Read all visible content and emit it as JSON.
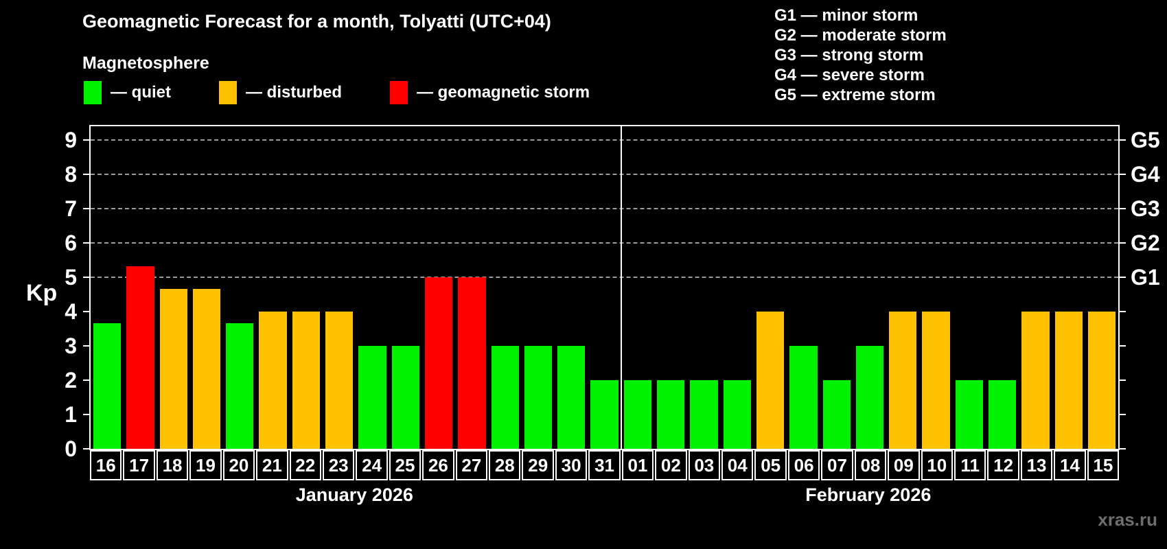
{
  "header": {
    "title": "Geomagnetic Forecast for a month, Tolyatti (UTC+04)",
    "subtitle": "Magnetosphere",
    "legend": [
      {
        "level": "quiet",
        "label": "— quiet"
      },
      {
        "level": "disturbed",
        "label": "— disturbed"
      },
      {
        "level": "storm",
        "label": "— geomagnetic storm"
      }
    ],
    "g_scale_legend": [
      "G1 — minor storm",
      "G2 — moderate storm",
      "G3 — strong storm",
      "G4 — severe storm",
      "G5 — extreme storm"
    ]
  },
  "chart_data": {
    "type": "bar",
    "title": "Geomagnetic Forecast for a month, Tolyatti (UTC+04)",
    "xlabel": "",
    "ylabel": "Kp",
    "ylim": [
      0,
      9.4
    ],
    "grid": "dashed horizontal at Kp 5-9 only",
    "y_ticks": [
      0,
      1,
      2,
      3,
      4,
      5,
      6,
      7,
      8,
      9
    ],
    "gridline_kp": [
      5,
      6,
      7,
      8,
      9
    ],
    "right_axis_labels": [
      {
        "kp": 5,
        "label": "G1"
      },
      {
        "kp": 6,
        "label": "G2"
      },
      {
        "kp": 7,
        "label": "G3"
      },
      {
        "kp": 8,
        "label": "G4"
      },
      {
        "kp": 9,
        "label": "G5"
      }
    ],
    "levels": {
      "quiet": "#00f200",
      "disturbed": "#ffc200",
      "storm": "#ff0000"
    },
    "months": [
      {
        "key": "jan",
        "label": "January 2026",
        "days": [
          {
            "day": "16",
            "kp": 3.67,
            "level": "quiet"
          },
          {
            "day": "17",
            "kp": 5.33,
            "level": "storm"
          },
          {
            "day": "18",
            "kp": 4.67,
            "level": "disturbed"
          },
          {
            "day": "19",
            "kp": 4.67,
            "level": "disturbed"
          },
          {
            "day": "20",
            "kp": 3.67,
            "level": "quiet"
          },
          {
            "day": "21",
            "kp": 4,
            "level": "disturbed"
          },
          {
            "day": "22",
            "kp": 4,
            "level": "disturbed"
          },
          {
            "day": "23",
            "kp": 4,
            "level": "disturbed"
          },
          {
            "day": "24",
            "kp": 3,
            "level": "quiet"
          },
          {
            "day": "25",
            "kp": 3,
            "level": "quiet"
          },
          {
            "day": "26",
            "kp": 5,
            "level": "storm"
          },
          {
            "day": "27",
            "kp": 5,
            "level": "storm"
          },
          {
            "day": "28",
            "kp": 3,
            "level": "quiet"
          },
          {
            "day": "29",
            "kp": 3,
            "level": "quiet"
          },
          {
            "day": "30",
            "kp": 3,
            "level": "quiet"
          },
          {
            "day": "31",
            "kp": 2,
            "level": "quiet"
          }
        ]
      },
      {
        "key": "feb",
        "label": "February 2026",
        "days": [
          {
            "day": "01",
            "kp": 2,
            "level": "quiet"
          },
          {
            "day": "02",
            "kp": 2,
            "level": "quiet"
          },
          {
            "day": "03",
            "kp": 2,
            "level": "quiet"
          },
          {
            "day": "04",
            "kp": 2,
            "level": "quiet"
          },
          {
            "day": "05",
            "kp": 4,
            "level": "disturbed"
          },
          {
            "day": "06",
            "kp": 3,
            "level": "quiet"
          },
          {
            "day": "07",
            "kp": 2,
            "level": "quiet"
          },
          {
            "day": "08",
            "kp": 3,
            "level": "quiet"
          },
          {
            "day": "09",
            "kp": 4,
            "level": "disturbed"
          },
          {
            "day": "10",
            "kp": 4,
            "level": "disturbed"
          },
          {
            "day": "11",
            "kp": 2,
            "level": "quiet"
          },
          {
            "day": "12",
            "kp": 2,
            "level": "quiet"
          },
          {
            "day": "13",
            "kp": 4,
            "level": "disturbed"
          },
          {
            "day": "14",
            "kp": 4,
            "level": "disturbed"
          },
          {
            "day": "15",
            "kp": 4,
            "level": "disturbed"
          }
        ]
      }
    ]
  },
  "watermark": "xras.ru"
}
